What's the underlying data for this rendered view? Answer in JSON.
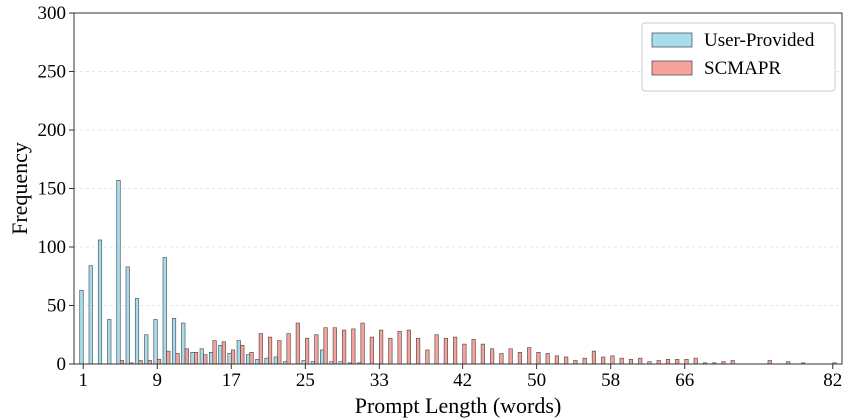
{
  "chart_data": {
    "type": "bar",
    "title": "",
    "xlabel": "Prompt Length (words)",
    "ylabel": "Frequency",
    "xlim": [
      0,
      83
    ],
    "ylim": [
      0,
      300
    ],
    "yticks": [
      0,
      50,
      100,
      150,
      200,
      250,
      300
    ],
    "xticks": [
      1,
      9,
      17,
      25,
      33,
      42,
      50,
      58,
      66,
      82
    ],
    "grid": "horizontal dashed",
    "legend_position": "top-right",
    "colors": {
      "User-Provided": "#a6dcee",
      "SCMAPR": "#f4a29a"
    },
    "series": [
      {
        "name": "User-Provided",
        "x": [
          1,
          2,
          3,
          4,
          5,
          6,
          7,
          8,
          9,
          10,
          11,
          12,
          13,
          14,
          15,
          16,
          17,
          18,
          19,
          20,
          21,
          22,
          23,
          24,
          25,
          26,
          27,
          28,
          29,
          30,
          31,
          32,
          33,
          34,
          35,
          36,
          37,
          38,
          39,
          40,
          41,
          42,
          43,
          44,
          45,
          46,
          47,
          48,
          49,
          50,
          51,
          52,
          53,
          54,
          55,
          56,
          57,
          58,
          59,
          60,
          61,
          62,
          63,
          64,
          65,
          66,
          67,
          68,
          69,
          70,
          71,
          72,
          73,
          74,
          75,
          76,
          77,
          78,
          79,
          80,
          81,
          82
        ],
        "values": [
          63,
          84,
          106,
          38,
          157,
          83,
          56,
          25,
          38,
          91,
          39,
          35,
          10,
          13,
          10,
          16,
          9,
          20,
          8,
          4,
          5,
          6,
          2,
          0,
          3,
          2,
          12,
          2,
          2,
          1,
          1,
          0,
          0,
          0,
          0,
          0,
          0,
          0,
          0,
          0,
          0,
          0,
          0,
          0,
          0,
          0,
          0,
          0,
          0,
          0,
          0,
          0,
          0,
          0,
          0,
          0,
          0,
          0,
          0,
          0,
          0,
          0,
          0,
          0,
          0,
          0,
          0,
          0,
          0,
          0,
          0,
          0,
          0,
          0,
          0,
          0,
          0,
          0,
          1,
          0,
          0,
          0
        ]
      },
      {
        "name": "SCMAPR",
        "x": [
          1,
          2,
          3,
          4,
          5,
          6,
          7,
          8,
          9,
          10,
          11,
          12,
          13,
          14,
          15,
          16,
          17,
          18,
          19,
          20,
          21,
          22,
          23,
          24,
          25,
          26,
          27,
          28,
          29,
          30,
          31,
          32,
          33,
          34,
          35,
          36,
          37,
          38,
          39,
          40,
          41,
          42,
          43,
          44,
          45,
          46,
          47,
          48,
          49,
          50,
          51,
          52,
          53,
          54,
          55,
          56,
          57,
          58,
          59,
          60,
          61,
          62,
          63,
          64,
          65,
          66,
          67,
          68,
          69,
          70,
          71,
          72,
          73,
          74,
          75,
          76,
          77,
          78,
          79,
          80,
          81,
          82
        ],
        "values": [
          0,
          0,
          0,
          0,
          3,
          1,
          3,
          3,
          4,
          11,
          9,
          13,
          10,
          8,
          20,
          19,
          12,
          16,
          10,
          26,
          23,
          20,
          26,
          35,
          22,
          25,
          31,
          31,
          29,
          30,
          35,
          23,
          29,
          22,
          28,
          29,
          22,
          12,
          25,
          22,
          23,
          17,
          21,
          17,
          13,
          9,
          13,
          10,
          14,
          10,
          9,
          7,
          6,
          3,
          5,
          11,
          6,
          7,
          5,
          4,
          5,
          2,
          3,
          4,
          4,
          4,
          5,
          1,
          1,
          2,
          3,
          0,
          0,
          0,
          3,
          0,
          2,
          0,
          0,
          0,
          0,
          1
        ]
      }
    ]
  }
}
